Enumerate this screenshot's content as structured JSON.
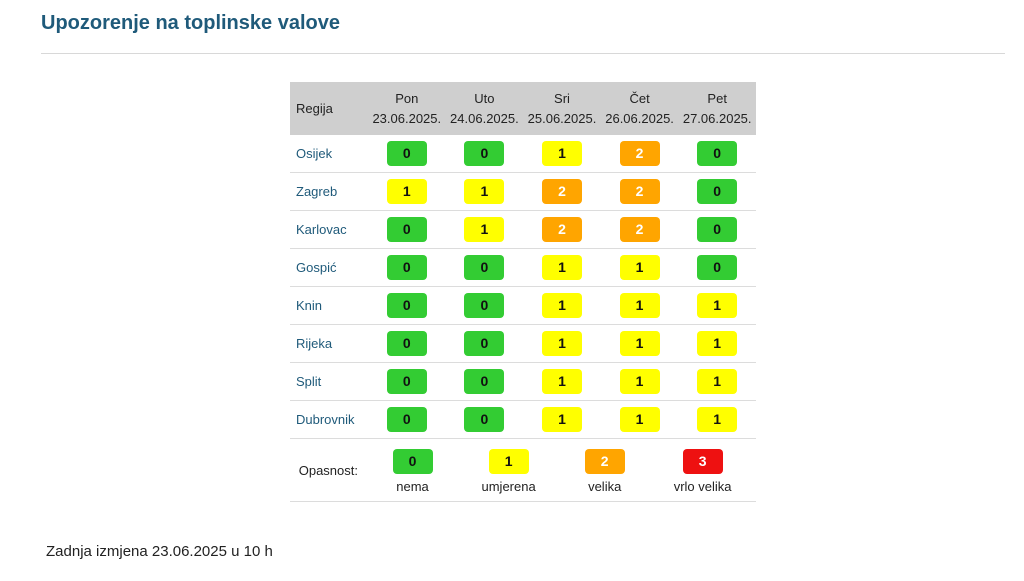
{
  "page": {
    "title": "Upozorenje na toplinske valove",
    "footer": "Zadnja izmjena 23.06.2025 u 10 h"
  },
  "table": {
    "region_header": "Regija",
    "days": [
      {
        "day": "Pon",
        "date": "23.06.2025."
      },
      {
        "day": "Uto",
        "date": "24.06.2025."
      },
      {
        "day": "Sri",
        "date": "25.06.2025."
      },
      {
        "day": "Čet",
        "date": "26.06.2025."
      },
      {
        "day": "Pet",
        "date": "27.06.2025."
      }
    ],
    "rows": [
      {
        "region": "Osijek",
        "levels": [
          "0",
          "0",
          "1",
          "2",
          "0"
        ]
      },
      {
        "region": "Zagreb",
        "levels": [
          "1",
          "1",
          "2",
          "2",
          "0"
        ]
      },
      {
        "region": "Karlovac",
        "levels": [
          "0",
          "1",
          "2",
          "2",
          "0"
        ]
      },
      {
        "region": "Gospić",
        "levels": [
          "0",
          "0",
          "1",
          "1",
          "0"
        ]
      },
      {
        "region": "Knin",
        "levels": [
          "0",
          "0",
          "1",
          "1",
          "1"
        ]
      },
      {
        "region": "Rijeka",
        "levels": [
          "0",
          "0",
          "1",
          "1",
          "1"
        ]
      },
      {
        "region": "Split",
        "levels": [
          "0",
          "0",
          "1",
          "1",
          "1"
        ]
      },
      {
        "region": "Dubrovnik",
        "levels": [
          "0",
          "0",
          "1",
          "1",
          "1"
        ]
      }
    ]
  },
  "legend": {
    "label": "Opasnost:",
    "items": [
      {
        "level": "0",
        "name": "nema"
      },
      {
        "level": "1",
        "name": "umjerena"
      },
      {
        "level": "2",
        "name": "velika"
      },
      {
        "level": "3",
        "name": "vrlo velika"
      }
    ]
  },
  "colors": {
    "level_0": "#33cc33",
    "level_1": "#ffff00",
    "level_2": "#ffa500",
    "level_3": "#ee1111",
    "title": "#1f5a7a",
    "header_bg": "#cfcfcf"
  }
}
